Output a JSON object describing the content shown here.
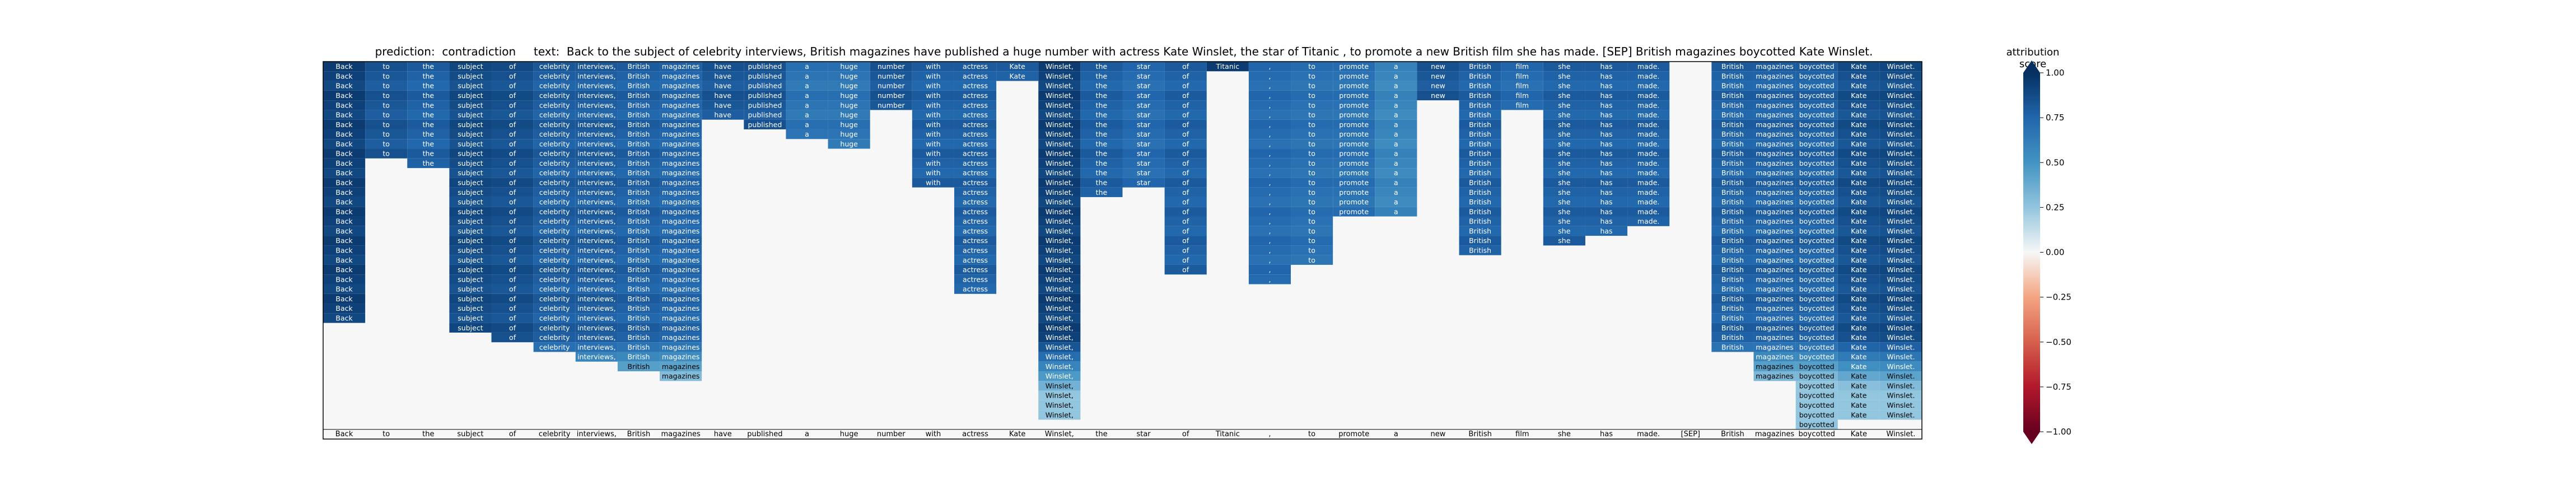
{
  "header": {
    "title": "prediction:  contradiction     text:  Back to the subject of celebrity interviews, British magazines have published a huge number with actress Kate Winslet, the star of Titanic , to promote a new British film she has made. [SEP] British magazines boycotted Kate Winslet.",
    "colorbar_title": "attribution score"
  },
  "chart_data": {
    "type": "heatmap",
    "title": "prediction:  contradiction     text:  Back to the subject of celebrity interviews, British magazines have published a huge number with actress Kate Winslet, the star of Titanic , to promote a new British film she has made. [SEP] British magazines boycotted Kate Winslet.",
    "tokens": [
      "Back",
      "to",
      "the",
      "subject",
      "of",
      "celebrity",
      "interviews,",
      "British",
      "magazines",
      "have",
      "published",
      "a",
      "huge",
      "number",
      "with",
      "actress",
      "Kate",
      "Winslet,",
      "the",
      "star",
      "of",
      "Titanic",
      ",",
      "to",
      "promote",
      "a",
      "new",
      "British",
      "film",
      "she",
      "has",
      "made.",
      "[SEP]",
      "British",
      "magazines",
      "boycotted",
      "Kate",
      "Winslet."
    ],
    "num_rows": 38,
    "column_spans": [
      {
        "token": "Back",
        "rows": [
          0,
          26
        ],
        "score": 0.95
      },
      {
        "token": "to",
        "rows": [
          0,
          9
        ],
        "score": 0.85
      },
      {
        "token": "the",
        "rows": [
          0,
          10
        ],
        "score": 0.8
      },
      {
        "token": "subject",
        "rows": [
          0,
          27
        ],
        "score": 0.9
      },
      {
        "token": "of",
        "rows": [
          0,
          28
        ],
        "score": 0.88
      },
      {
        "token": "celebrity",
        "rows": [
          0,
          29
        ],
        "score": 0.82
      },
      {
        "token": "interviews,",
        "rows": [
          0,
          30
        ],
        "score": 0.82
      },
      {
        "token": "British",
        "rows": [
          0,
          31
        ],
        "score": 0.8
      },
      {
        "token": "magazines",
        "rows": [
          0,
          32
        ],
        "score": 0.78
      },
      {
        "token": "have",
        "rows": [
          0,
          5
        ],
        "score": 0.85
      },
      {
        "token": "published",
        "rows": [
          0,
          6
        ],
        "score": 0.85
      },
      {
        "token": "a",
        "rows": [
          0,
          7
        ],
        "score": 0.7
      },
      {
        "token": "huge",
        "rows": [
          0,
          8
        ],
        "score": 0.7
      },
      {
        "token": "number",
        "rows": [
          0,
          4
        ],
        "score": 0.85
      },
      {
        "token": "with",
        "rows": [
          0,
          12
        ],
        "score": 0.8
      },
      {
        "token": "actress",
        "rows": [
          0,
          23
        ],
        "score": 0.8
      },
      {
        "token": "Kate",
        "rows": [
          0,
          1
        ],
        "score": 0.8
      },
      {
        "token": "Winslet,",
        "rows": [
          0,
          36
        ],
        "score": 0.95
      },
      {
        "token": "the",
        "rows": [
          0,
          13
        ],
        "score": 0.8
      },
      {
        "token": "star",
        "rows": [
          0,
          12
        ],
        "score": 0.75
      },
      {
        "token": "of",
        "rows": [
          0,
          21
        ],
        "score": 0.8
      },
      {
        "token": "Titanic",
        "rows": [
          0,
          0
        ],
        "score": 0.95
      },
      {
        "token": ",",
        "rows": [
          0,
          22
        ],
        "score": 0.75
      },
      {
        "token": "to",
        "rows": [
          0,
          20
        ],
        "score": 0.72
      },
      {
        "token": "promote",
        "rows": [
          0,
          15
        ],
        "score": 0.72
      },
      {
        "token": "a",
        "rows": [
          0,
          15
        ],
        "score": 0.6
      },
      {
        "token": "new",
        "rows": [
          0,
          3
        ],
        "score": 0.85
      },
      {
        "token": "British",
        "rows": [
          0,
          19
        ],
        "score": 0.8
      },
      {
        "token": "film",
        "rows": [
          0,
          4
        ],
        "score": 0.75
      },
      {
        "token": "she",
        "rows": [
          0,
          18
        ],
        "score": 0.8
      },
      {
        "token": "has",
        "rows": [
          0,
          17
        ],
        "score": 0.8
      },
      {
        "token": "made.",
        "rows": [
          0,
          16
        ],
        "score": 0.8
      },
      {
        "token": "[SEP]",
        "rows": null,
        "score": 0.0
      },
      {
        "token": "British",
        "rows": [
          0,
          29
        ],
        "score": 0.8
      },
      {
        "token": "magazines",
        "rows": [
          0,
          32
        ],
        "score": 0.8
      },
      {
        "token": "boycotted",
        "rows": [
          0,
          37
        ],
        "score": 0.8
      },
      {
        "token": "Kate",
        "rows": [
          0,
          36
        ],
        "score": 0.88
      },
      {
        "token": "Winslet.",
        "rows": [
          0,
          36
        ],
        "score": 0.9
      }
    ],
    "colorbar": {
      "range": [
        -1.0,
        1.0
      ],
      "ticks": [
        "1.00",
        "0.75",
        "0.50",
        "0.25",
        "0.00",
        "−0.25",
        "−0.50",
        "−0.75",
        "−1.00"
      ],
      "colormap": "RdBu",
      "extend": "both"
    }
  }
}
